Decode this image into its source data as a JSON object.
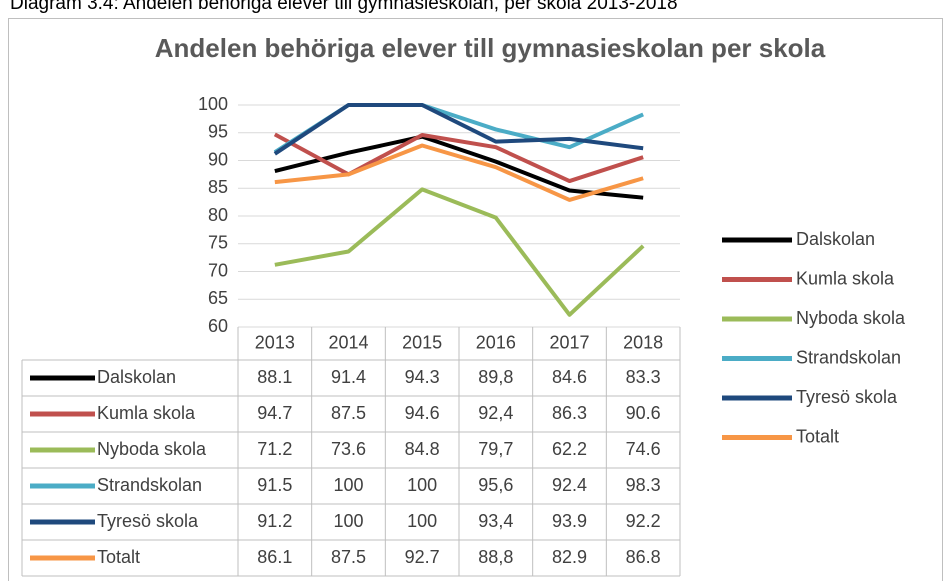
{
  "chart_data": {
    "type": "line",
    "caption": "Diagram 3.4: Andelen behöriga elever till gymnasieskolan, per skola 2013-2018",
    "title": "Andelen behöriga elever till gymnasieskolan per skola",
    "categories": [
      "2013",
      "2014",
      "2015",
      "2016",
      "2017",
      "2018"
    ],
    "ylim": [
      60,
      100
    ],
    "yticks": [
      60,
      65,
      70,
      75,
      80,
      85,
      90,
      95,
      100
    ],
    "grid": true,
    "legend": "right",
    "series": [
      {
        "name": "Dalskolan",
        "color": "#000000",
        "values": [
          88.1,
          91.4,
          94.3,
          89.8,
          84.6,
          83.3
        ],
        "value_labels": [
          "88.1",
          "91.4",
          "94.3",
          "89,8",
          "84.6",
          "83.3"
        ]
      },
      {
        "name": "Kumla skola",
        "color": "#c0504d",
        "values": [
          94.7,
          87.5,
          94.6,
          92.4,
          86.3,
          90.6
        ],
        "value_labels": [
          "94.7",
          "87.5",
          "94.6",
          "92,4",
          "86.3",
          "90.6"
        ]
      },
      {
        "name": "Nyboda skola",
        "color": "#9bbb59",
        "values": [
          71.2,
          73.6,
          84.8,
          79.7,
          62.2,
          74.6
        ],
        "value_labels": [
          "71.2",
          "73.6",
          "84.8",
          "79,7",
          "62.2",
          "74.6"
        ]
      },
      {
        "name": "Strandskolan",
        "color": "#4bacc6",
        "values": [
          91.5,
          100,
          100,
          95.6,
          92.4,
          98.3
        ],
        "value_labels": [
          "91.5",
          "100",
          "100",
          "95,6",
          "92.4",
          "98.3"
        ]
      },
      {
        "name": "Tyresö skola",
        "color": "#1f497d",
        "values": [
          91.2,
          100,
          100,
          93.4,
          93.9,
          92.2
        ],
        "value_labels": [
          "91.2",
          "100",
          "100",
          "93,4",
          "93.9",
          "92.2"
        ]
      },
      {
        "name": "Totalt",
        "color": "#f79646",
        "values": [
          86.1,
          87.5,
          92.7,
          88.8,
          82.9,
          86.8
        ],
        "value_labels": [
          "86.1",
          "87.5",
          "92.7",
          "88,8",
          "82.9",
          "86.8"
        ]
      }
    ]
  }
}
